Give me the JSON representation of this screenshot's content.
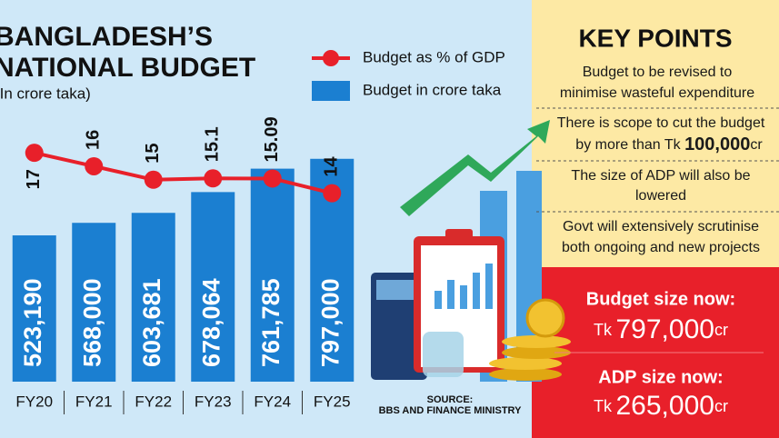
{
  "header": {
    "title_lines": [
      "BANGLADESH’S",
      "NATIONAL BUDGET"
    ],
    "subtitle": "(In crore taka)"
  },
  "chart_data": {
    "type": "combo",
    "categories": [
      "FY20",
      "FY21",
      "FY22",
      "FY23",
      "FY24",
      "FY25"
    ],
    "series": [
      {
        "name": "Budget in crore taka",
        "type": "bar",
        "color": "#1b7fd1",
        "values": [
          523190,
          568000,
          603681,
          678064,
          761785,
          797000
        ],
        "value_labels": [
          "523,190",
          "568,000",
          "603,681",
          "678,064",
          "761,785",
          "797,000"
        ]
      },
      {
        "name": "Budget as % of GDP",
        "type": "line",
        "axis": "y2",
        "color": "#e8202a",
        "values": [
          17,
          16,
          15,
          15.1,
          15.09,
          14
        ]
      }
    ],
    "ylim": [
      0,
      1300000
    ],
    "y2lim": [
      0,
      27
    ],
    "legend": "top-right",
    "grid": false
  },
  "source": {
    "label": "SOURCE:",
    "text": "BBS AND FINANCE MINISTRY"
  },
  "key_points": {
    "title": "KEY POINTS",
    "items": [
      {
        "lines": [
          "Budget to be revised to",
          "minimise wasteful expenditure"
        ]
      },
      {
        "lines": [
          "There is scope to cut the budget"
        ],
        "prefix": "by more than Tk",
        "amount": "100,000",
        "unit": "cr"
      },
      {
        "lines": [
          "The size of ADP will also be",
          "lowered"
        ]
      },
      {
        "lines": [
          "Govt will extensively scrutinise",
          "both ongoing and new projects"
        ]
      }
    ]
  },
  "highlights": [
    {
      "label": "Budget size now:",
      "prefix": "Tk",
      "amount": "797,000",
      "unit": "cr"
    },
    {
      "label": "ADP size now:",
      "prefix": "Tk",
      "amount": "265,000",
      "unit": "cr"
    }
  ]
}
